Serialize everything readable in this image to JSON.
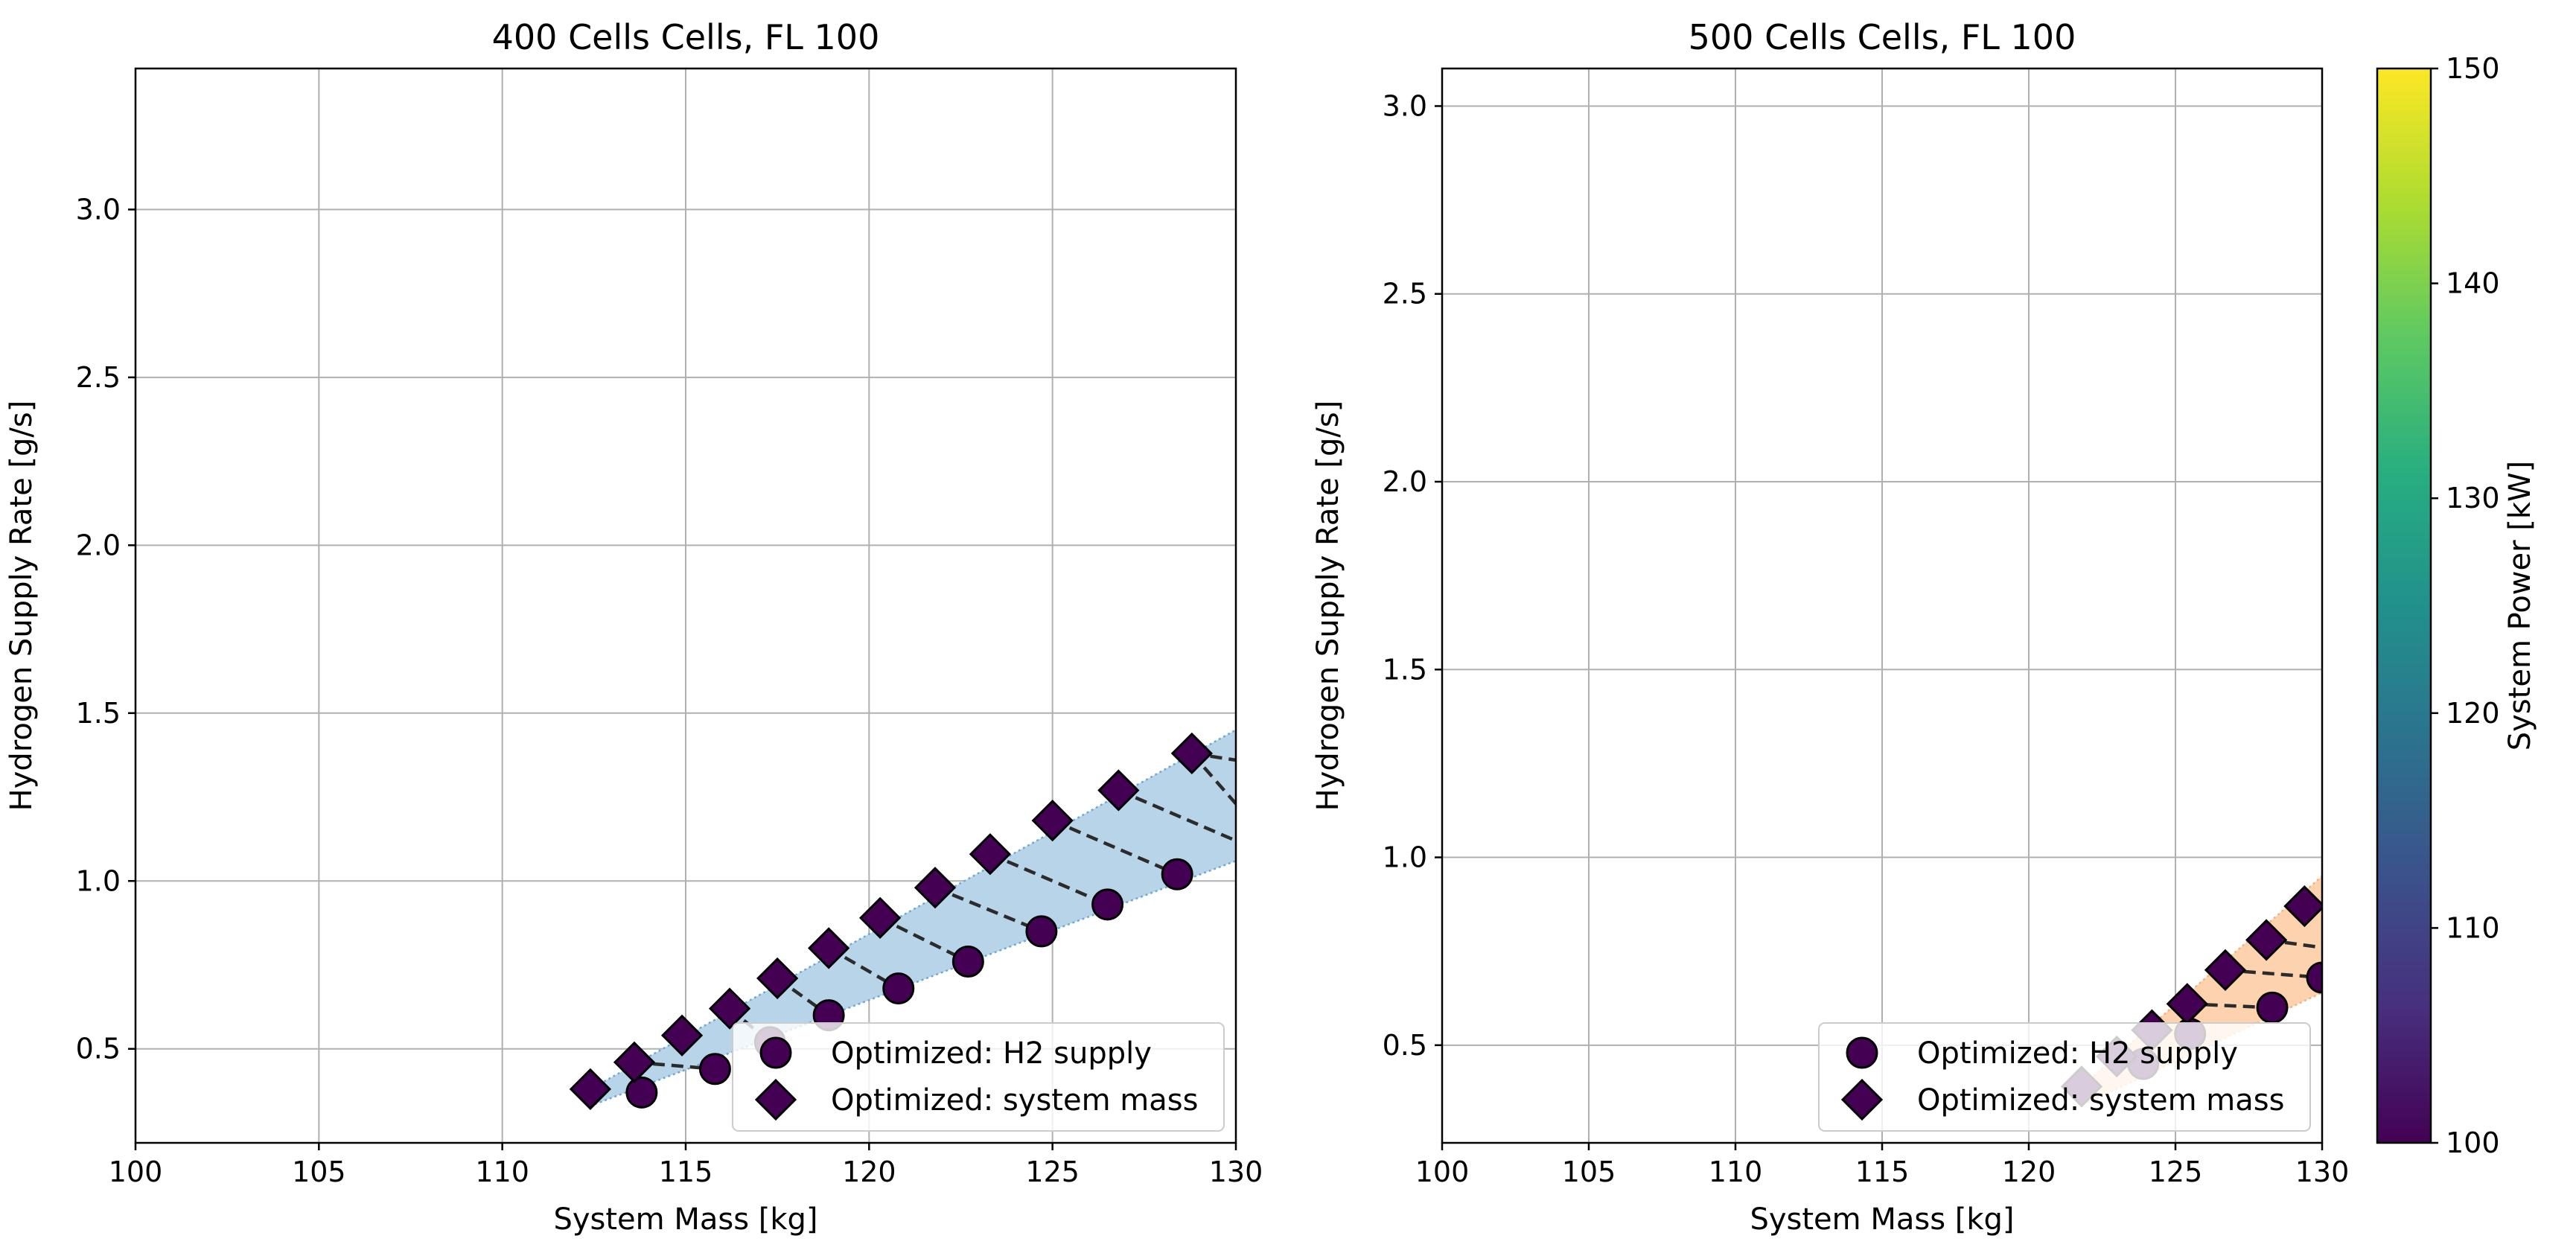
{
  "figure": {
    "colorbar": {
      "label": "System Power [kW]",
      "range": [
        100,
        150
      ],
      "ticks": [
        100,
        110,
        120,
        130,
        140,
        150
      ],
      "colormap": "viridis",
      "colors": [
        "#440154",
        "#472f7d",
        "#3b528b",
        "#2c728e",
        "#21918c",
        "#28ae80",
        "#5ec962",
        "#addc30",
        "#fde725"
      ]
    }
  },
  "chart_data": [
    {
      "type": "scatter",
      "title": "400 Cells Cells, FL 100",
      "xlabel": "System Mass [kg]",
      "ylabel": "Hydrogen Supply Rate [g/s]",
      "xlim": [
        100,
        130
      ],
      "ylim": [
        0.22,
        3.42
      ],
      "xticks": [
        100,
        105,
        110,
        115,
        120,
        125,
        130
      ],
      "yticks": [
        0.5,
        1.0,
        1.5,
        2.0,
        2.5,
        3.0
      ],
      "grid": true,
      "legend_position": "lower right",
      "band_color": "#b8d4e8",
      "band_edge_color": "#6fa8d6",
      "series": [
        {
          "name": "Optimized: H2 supply",
          "marker": "circle",
          "x": [
            113.8,
            115.8,
            117.3,
            118.9,
            120.8,
            122.7,
            124.7,
            126.5,
            128.4
          ],
          "y": [
            0.37,
            0.44,
            0.52,
            0.6,
            0.68,
            0.76,
            0.85,
            0.93,
            1.02
          ]
        },
        {
          "name": "Optimized: system mass",
          "marker": "diamond",
          "x": [
            112.4,
            113.6,
            114.9,
            116.2,
            117.5,
            118.9,
            120.3,
            121.8,
            123.3,
            125.0,
            126.8,
            128.8
          ],
          "y": [
            0.38,
            0.46,
            0.54,
            0.62,
            0.71,
            0.8,
            0.89,
            0.98,
            1.08,
            1.18,
            1.27,
            1.38
          ]
        }
      ],
      "marker_color": "#440154",
      "connectors": [
        [
          [
            113.6,
            0.46
          ],
          [
            115.8,
            0.44
          ]
        ],
        [
          [
            116.2,
            0.62
          ],
          [
            117.3,
            0.52
          ]
        ],
        [
          [
            117.5,
            0.71
          ],
          [
            118.9,
            0.6
          ]
        ],
        [
          [
            118.9,
            0.8
          ],
          [
            120.8,
            0.68
          ]
        ],
        [
          [
            120.3,
            0.89
          ],
          [
            122.7,
            0.76
          ]
        ],
        [
          [
            121.8,
            0.98
          ],
          [
            124.7,
            0.85
          ]
        ],
        [
          [
            123.3,
            1.08
          ],
          [
            126.5,
            0.93
          ]
        ],
        [
          [
            125.0,
            1.18
          ],
          [
            128.4,
            1.02
          ]
        ],
        [
          [
            126.8,
            1.27
          ],
          [
            130.0,
            1.12
          ]
        ],
        [
          [
            128.8,
            1.38
          ],
          [
            130.0,
            1.23
          ]
        ],
        [
          [
            128.8,
            1.38
          ],
          [
            130.0,
            1.36
          ]
        ]
      ],
      "band_upper": [
        [
          112.4,
          0.38
        ],
        [
          130.0,
          1.45
        ]
      ],
      "band_lower": [
        [
          112.4,
          0.33
        ],
        [
          130.0,
          1.06
        ]
      ]
    },
    {
      "type": "scatter",
      "title": "500 Cells Cells, FL 100",
      "xlabel": "System Mass [kg]",
      "ylabel": "Hydrogen Supply Rate [g/s]",
      "xlim": [
        100,
        130
      ],
      "ylim": [
        0.24,
        3.1
      ],
      "xticks": [
        100,
        105,
        110,
        115,
        120,
        125,
        130
      ],
      "yticks": [
        0.5,
        1.0,
        1.5,
        2.0,
        2.5,
        3.0
      ],
      "grid": true,
      "legend_position": "lower right",
      "band_color": "#fdd2ae",
      "band_edge_color": "#f7b27a",
      "series": [
        {
          "name": "Optimized: H2 supply",
          "marker": "circle",
          "x": [
            123.9,
            125.5,
            128.3,
            130.0
          ],
          "y": [
            0.45,
            0.53,
            0.6,
            0.68
          ]
        },
        {
          "name": "Optimized: system mass",
          "marker": "diamond",
          "x": [
            121.8,
            123.0,
            124.2,
            125.4,
            126.7,
            128.1,
            129.4
          ],
          "y": [
            0.39,
            0.47,
            0.54,
            0.61,
            0.7,
            0.78,
            0.87
          ]
        }
      ],
      "marker_color": "#440154",
      "connectors": [
        [
          [
            123.0,
            0.47
          ],
          [
            123.9,
            0.45
          ]
        ],
        [
          [
            125.4,
            0.61
          ],
          [
            128.3,
            0.6
          ]
        ],
        [
          [
            126.7,
            0.7
          ],
          [
            130.0,
            0.68
          ]
        ],
        [
          [
            128.1,
            0.78
          ],
          [
            130.0,
            0.76
          ]
        ]
      ],
      "band_upper": [
        [
          121.8,
          0.39
        ],
        [
          130.0,
          0.95
        ]
      ],
      "band_lower": [
        [
          121.8,
          0.34
        ],
        [
          130.0,
          0.64
        ]
      ]
    }
  ]
}
